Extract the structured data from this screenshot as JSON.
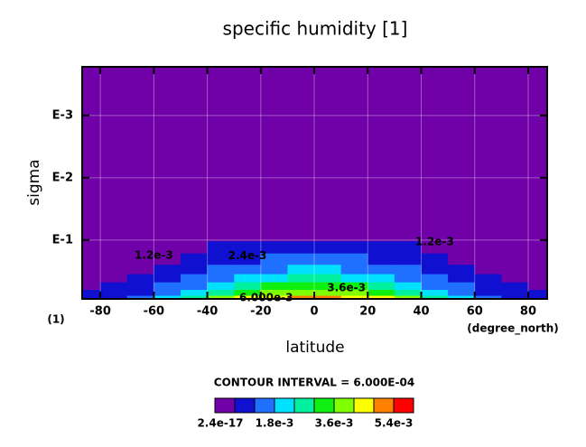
{
  "chart_data": {
    "type": "contour",
    "title": "specific humidity [1]",
    "x_label": "latitude",
    "y_label": "sigma",
    "x_units": "(degree_north)",
    "y_units": "(1)",
    "xlim": [
      -86.8,
      87.1
    ],
    "xticks": [
      -80,
      -60,
      -40,
      -20,
      0,
      20,
      40,
      60,
      80
    ],
    "ylim": [
      0.88,
      0.000166
    ],
    "y_log": true,
    "yticks": [
      {
        "value": 0.001,
        "label": "E-3"
      },
      {
        "value": 0.01,
        "label": "E-2"
      },
      {
        "value": 0.1,
        "label": "E-1"
      }
    ],
    "grid": true,
    "x": [
      -85,
      -75,
      -65,
      -55,
      -45,
      -35,
      -25,
      -15,
      -5,
      5,
      15,
      25,
      35,
      45,
      55,
      65,
      75,
      85
    ],
    "y": [
      0.85,
      0.7,
      0.55,
      0.4,
      0.3,
      0.2,
      0.13
    ],
    "z": [
      [
        0.0008,
        0.001,
        0.0014,
        0.002,
        0.0028,
        0.0036,
        0.0042,
        0.0046,
        0.0048,
        0.0048,
        0.0046,
        0.0042,
        0.0036,
        0.0028,
        0.002,
        0.0014,
        0.001,
        0.0008
      ],
      [
        0.0006,
        0.0008,
        0.0011,
        0.0016,
        0.0022,
        0.0029,
        0.0034,
        0.0037,
        0.0039,
        0.0039,
        0.0037,
        0.0034,
        0.0029,
        0.0022,
        0.0016,
        0.0011,
        0.0008,
        0.0006
      ],
      [
        0.0005,
        0.0006,
        0.0009,
        0.0012,
        0.0017,
        0.0023,
        0.0027,
        0.003,
        0.0031,
        0.0031,
        0.003,
        0.0027,
        0.0023,
        0.0017,
        0.0012,
        0.0009,
        0.0006,
        0.0005
      ],
      [
        0.0004,
        0.0005,
        0.0007,
        0.0009,
        0.0013,
        0.0017,
        0.002,
        0.0023,
        0.0024,
        0.0024,
        0.0023,
        0.002,
        0.0017,
        0.0013,
        0.0009,
        0.0007,
        0.0005,
        0.0004
      ],
      [
        0.0003,
        0.0004,
        0.0005,
        0.0007,
        0.0009,
        0.0012,
        0.0015,
        0.0017,
        0.0018,
        0.0018,
        0.0017,
        0.0015,
        0.0012,
        0.0009,
        0.0007,
        0.0005,
        0.0004,
        0.0003
      ],
      [
        0.0002,
        0.0003,
        0.0004,
        0.0005,
        0.0006,
        0.0008,
        0.001,
        0.0012,
        0.0013,
        0.0013,
        0.0012,
        0.001,
        0.0008,
        0.0006,
        0.0005,
        0.0004,
        0.0003,
        0.0002
      ],
      [
        0.0001,
        0.0002,
        0.0003,
        0.0004,
        0.0005,
        0.0006,
        0.0007,
        0.0008,
        0.0008,
        0.0008,
        0.0008,
        0.0007,
        0.0006,
        0.0005,
        0.0004,
        0.0003,
        0.0002,
        0.0001
      ]
    ],
    "levels": [
      0,
      0.0006,
      0.0012,
      0.0018,
      0.0024,
      0.003,
      0.0036,
      0.0042,
      0.0048,
      0.0054,
      0.006
    ],
    "colors": [
      "#7000a8",
      "#1010d0",
      "#2070ff",
      "#00e0ff",
      "#00f0a0",
      "#10f010",
      "#80ff00",
      "#ffff00",
      "#ff8000",
      "#ff0000"
    ],
    "contour_labels": [
      {
        "text": "1.2e-3",
        "x": -60,
        "y": 0.176
      },
      {
        "text": "1.2e-3",
        "x": 45,
        "y": 0.107
      },
      {
        "text": "2.4e-3",
        "x": -25,
        "y": 0.18
      },
      {
        "text": "3.6e-3",
        "x": 12,
        "y": 0.59
      },
      {
        "text": "6.000e-3",
        "x": -18,
        "y": 0.85
      }
    ],
    "colorbar": {
      "title": "CONTOUR INTERVAL = 6.000E-04",
      "ticks": [
        {
          "value": 2.4e-17,
          "label": "2.4e-17"
        },
        {
          "value": 0.0018,
          "label": "1.8e-3"
        },
        {
          "value": 0.0036,
          "label": "3.6e-3"
        },
        {
          "value": 0.0054,
          "label": "5.4e-3"
        }
      ]
    }
  }
}
